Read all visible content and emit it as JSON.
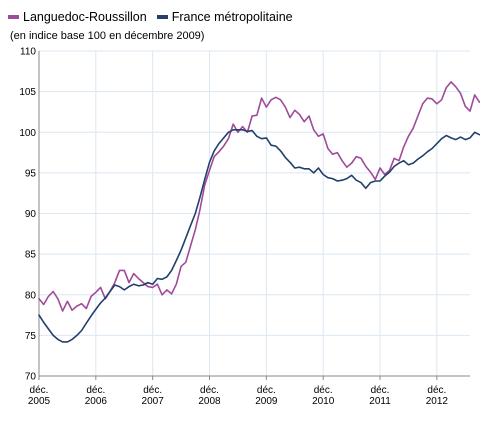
{
  "colors": {
    "languedoc": "#a04a9a",
    "france": "#22406b",
    "grid": "#dbe7f2",
    "axis": "#8a8a8a"
  },
  "chart_data": {
    "type": "line",
    "title": "",
    "subtitle": "(en indice base 100 en décembre 2009)",
    "legend_position": "top-left",
    "grid": true,
    "ylim": [
      70,
      110
    ],
    "yticks": [
      70,
      75,
      80,
      85,
      90,
      95,
      100,
      105,
      110
    ],
    "xlim": [
      2005.917,
      2013.5
    ],
    "xticks": [
      {
        "x": 2005.917,
        "line1": "déc.",
        "line2": "2005"
      },
      {
        "x": 2006.917,
        "line1": "déc.",
        "line2": "2006"
      },
      {
        "x": 2007.917,
        "line1": "déc.",
        "line2": "2007"
      },
      {
        "x": 2008.917,
        "line1": "déc.",
        "line2": "2008"
      },
      {
        "x": 2009.917,
        "line1": "déc.",
        "line2": "2009"
      },
      {
        "x": 2010.917,
        "line1": "déc.",
        "line2": "2010"
      },
      {
        "x": 2011.917,
        "line1": "déc.",
        "line2": "2011"
      },
      {
        "x": 2012.917,
        "line1": "déc.",
        "line2": "2012"
      }
    ],
    "series": [
      {
        "name": "Languedoc-Roussillon",
        "color_key": "languedoc",
        "points": [
          [
            2005.917,
            79.5
          ],
          [
            2006,
            78.8
          ],
          [
            2006.083,
            79.8
          ],
          [
            2006.167,
            80.4
          ],
          [
            2006.25,
            79.5
          ],
          [
            2006.333,
            78.0
          ],
          [
            2006.417,
            79.2
          ],
          [
            2006.5,
            78.1
          ],
          [
            2006.583,
            78.6
          ],
          [
            2006.667,
            78.9
          ],
          [
            2006.75,
            78.3
          ],
          [
            2006.833,
            79.8
          ],
          [
            2006.917,
            80.3
          ],
          [
            2007,
            80.9
          ],
          [
            2007.083,
            79.5
          ],
          [
            2007.167,
            80.4
          ],
          [
            2007.25,
            81.5
          ],
          [
            2007.333,
            83.0
          ],
          [
            2007.417,
            83.0
          ],
          [
            2007.5,
            81.5
          ],
          [
            2007.583,
            82.6
          ],
          [
            2007.667,
            82.0
          ],
          [
            2007.75,
            81.5
          ],
          [
            2007.833,
            81.0
          ],
          [
            2007.917,
            80.9
          ],
          [
            2008,
            81.3
          ],
          [
            2008.083,
            80.0
          ],
          [
            2008.167,
            80.6
          ],
          [
            2008.25,
            80.1
          ],
          [
            2008.333,
            81.3
          ],
          [
            2008.417,
            83.5
          ],
          [
            2008.5,
            84.0
          ],
          [
            2008.583,
            86.0
          ],
          [
            2008.667,
            88.0
          ],
          [
            2008.75,
            90.5
          ],
          [
            2008.833,
            93.5
          ],
          [
            2008.917,
            95.3
          ],
          [
            2009,
            97.0
          ],
          [
            2009.083,
            97.6
          ],
          [
            2009.167,
            98.3
          ],
          [
            2009.25,
            99.2
          ],
          [
            2009.333,
            101.0
          ],
          [
            2009.417,
            100.0
          ],
          [
            2009.5,
            100.7
          ],
          [
            2009.583,
            100.0
          ],
          [
            2009.667,
            102.0
          ],
          [
            2009.75,
            102.1
          ],
          [
            2009.833,
            104.2
          ],
          [
            2009.917,
            103.1
          ],
          [
            2010,
            104.0
          ],
          [
            2010.083,
            104.3
          ],
          [
            2010.167,
            104.0
          ],
          [
            2010.25,
            103.1
          ],
          [
            2010.333,
            101.8
          ],
          [
            2010.417,
            102.7
          ],
          [
            2010.5,
            102.2
          ],
          [
            2010.583,
            101.3
          ],
          [
            2010.667,
            102.0
          ],
          [
            2010.75,
            100.3
          ],
          [
            2010.833,
            99.5
          ],
          [
            2010.917,
            99.8
          ],
          [
            2011,
            98.0
          ],
          [
            2011.083,
            97.3
          ],
          [
            2011.167,
            97.5
          ],
          [
            2011.25,
            96.5
          ],
          [
            2011.333,
            95.7
          ],
          [
            2011.417,
            96.2
          ],
          [
            2011.5,
            97.0
          ],
          [
            2011.583,
            96.8
          ],
          [
            2011.667,
            95.8
          ],
          [
            2011.75,
            95.1
          ],
          [
            2011.833,
            94.2
          ],
          [
            2011.917,
            95.6
          ],
          [
            2012,
            94.8
          ],
          [
            2012.083,
            95.3
          ],
          [
            2012.167,
            96.8
          ],
          [
            2012.25,
            96.5
          ],
          [
            2012.333,
            98.2
          ],
          [
            2012.417,
            99.5
          ],
          [
            2012.5,
            100.5
          ],
          [
            2012.583,
            102.0
          ],
          [
            2012.667,
            103.5
          ],
          [
            2012.75,
            104.2
          ],
          [
            2012.833,
            104.1
          ],
          [
            2012.917,
            103.5
          ],
          [
            2013,
            104.0
          ],
          [
            2013.083,
            105.5
          ],
          [
            2013.167,
            106.2
          ],
          [
            2013.25,
            105.6
          ],
          [
            2013.333,
            104.8
          ],
          [
            2013.417,
            103.2
          ],
          [
            2013.5,
            102.6
          ],
          [
            2013.583,
            104.6
          ],
          [
            2013.667,
            103.7
          ]
        ]
      },
      {
        "name": "France métropolitaine",
        "color_key": "france",
        "points": [
          [
            2005.917,
            77.5
          ],
          [
            2006,
            76.6
          ],
          [
            2006.083,
            75.8
          ],
          [
            2006.167,
            75.0
          ],
          [
            2006.25,
            74.5
          ],
          [
            2006.333,
            74.2
          ],
          [
            2006.417,
            74.2
          ],
          [
            2006.5,
            74.5
          ],
          [
            2006.583,
            75.0
          ],
          [
            2006.667,
            75.6
          ],
          [
            2006.75,
            76.5
          ],
          [
            2006.833,
            77.4
          ],
          [
            2006.917,
            78.2
          ],
          [
            2007,
            79.0
          ],
          [
            2007.083,
            79.6
          ],
          [
            2007.167,
            80.4
          ],
          [
            2007.25,
            81.2
          ],
          [
            2007.333,
            81.0
          ],
          [
            2007.417,
            80.6
          ],
          [
            2007.5,
            81.0
          ],
          [
            2007.583,
            81.3
          ],
          [
            2007.667,
            81.1
          ],
          [
            2007.75,
            81.2
          ],
          [
            2007.833,
            81.5
          ],
          [
            2007.917,
            81.3
          ],
          [
            2008,
            82.0
          ],
          [
            2008.083,
            81.9
          ],
          [
            2008.167,
            82.2
          ],
          [
            2008.25,
            83.0
          ],
          [
            2008.333,
            84.2
          ],
          [
            2008.417,
            85.5
          ],
          [
            2008.5,
            87.0
          ],
          [
            2008.583,
            88.5
          ],
          [
            2008.667,
            90.0
          ],
          [
            2008.75,
            92.0
          ],
          [
            2008.833,
            94.2
          ],
          [
            2008.917,
            96.3
          ],
          [
            2009,
            97.7
          ],
          [
            2009.083,
            98.6
          ],
          [
            2009.167,
            99.3
          ],
          [
            2009.25,
            100.0
          ],
          [
            2009.333,
            100.3
          ],
          [
            2009.417,
            100.3
          ],
          [
            2009.5,
            100.3
          ],
          [
            2009.583,
            100.1
          ],
          [
            2009.667,
            100.2
          ],
          [
            2009.75,
            99.5
          ],
          [
            2009.833,
            99.2
          ],
          [
            2009.917,
            99.3
          ],
          [
            2010,
            98.4
          ],
          [
            2010.083,
            98.3
          ],
          [
            2010.167,
            97.7
          ],
          [
            2010.25,
            96.9
          ],
          [
            2010.333,
            96.3
          ],
          [
            2010.417,
            95.6
          ],
          [
            2010.5,
            95.7
          ],
          [
            2010.583,
            95.5
          ],
          [
            2010.667,
            95.5
          ],
          [
            2010.75,
            95.0
          ],
          [
            2010.833,
            95.6
          ],
          [
            2010.917,
            94.8
          ],
          [
            2011,
            94.4
          ],
          [
            2011.083,
            94.3
          ],
          [
            2011.167,
            94.0
          ],
          [
            2011.25,
            94.1
          ],
          [
            2011.333,
            94.3
          ],
          [
            2011.417,
            94.7
          ],
          [
            2011.5,
            94.1
          ],
          [
            2011.583,
            93.8
          ],
          [
            2011.667,
            93.1
          ],
          [
            2011.75,
            93.8
          ],
          [
            2011.833,
            94.0
          ],
          [
            2011.917,
            94.0
          ],
          [
            2012,
            94.6
          ],
          [
            2012.083,
            95.1
          ],
          [
            2012.167,
            95.8
          ],
          [
            2012.25,
            96.2
          ],
          [
            2012.333,
            96.5
          ],
          [
            2012.417,
            96.0
          ],
          [
            2012.5,
            96.2
          ],
          [
            2012.583,
            96.7
          ],
          [
            2012.667,
            97.1
          ],
          [
            2012.75,
            97.6
          ],
          [
            2012.833,
            98.0
          ],
          [
            2012.917,
            98.6
          ],
          [
            2013,
            99.2
          ],
          [
            2013.083,
            99.6
          ],
          [
            2013.167,
            99.3
          ],
          [
            2013.25,
            99.1
          ],
          [
            2013.333,
            99.4
          ],
          [
            2013.417,
            99.1
          ],
          [
            2013.5,
            99.3
          ],
          [
            2013.583,
            100.0
          ],
          [
            2013.667,
            99.7
          ]
        ]
      }
    ]
  }
}
